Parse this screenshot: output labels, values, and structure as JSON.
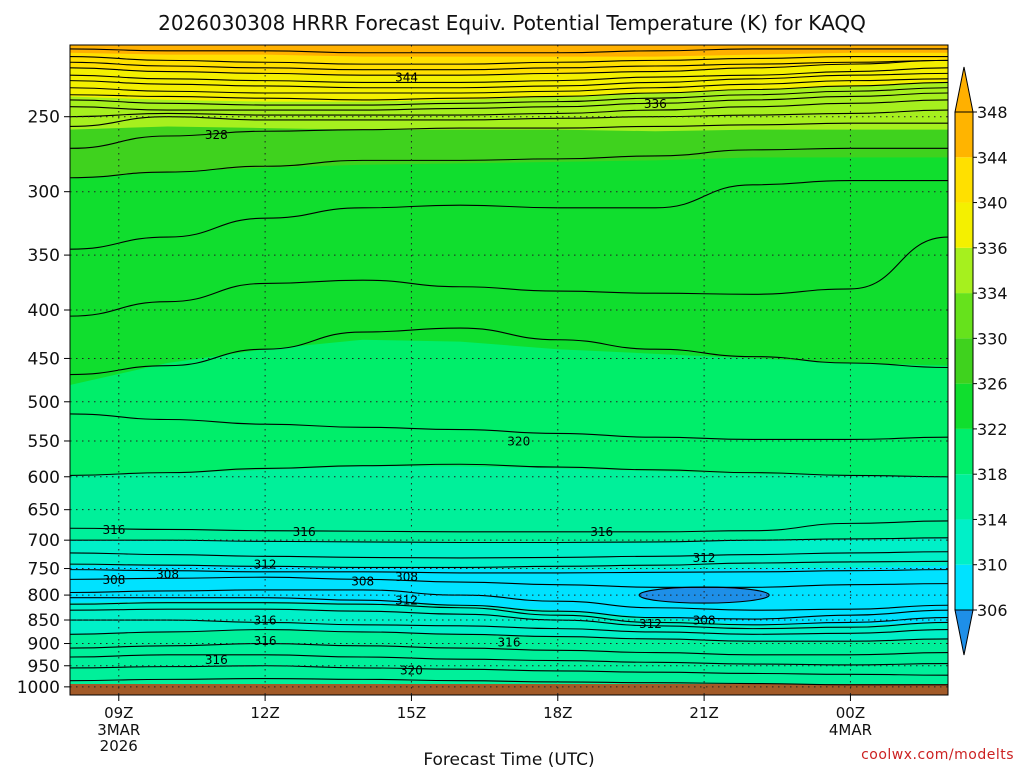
{
  "chart_data": {
    "type": "heatmap",
    "title": "2026030308 HRRR Forecast Equiv. Potential Temperature (K) for KAQQ",
    "xlabel": "Forecast Time (UTC)",
    "ylabel": "",
    "credit": "coolwx.com/modelts",
    "x_ticks": [
      {
        "hour": 0,
        "label": "09Z",
        "sub": [
          "3MAR",
          "2026"
        ]
      },
      {
        "hour": 3,
        "label": "12Z",
        "sub": []
      },
      {
        "hour": 6,
        "label": "15Z",
        "sub": []
      },
      {
        "hour": 9,
        "label": "18Z",
        "sub": []
      },
      {
        "hour": 12,
        "label": "21Z",
        "sub": []
      },
      {
        "hour": 15,
        "label": "00Z",
        "sub": [
          "4MAR"
        ]
      }
    ],
    "xlim": [
      -1,
      17
    ],
    "y_ticks": [
      250,
      300,
      350,
      400,
      450,
      500,
      550,
      600,
      650,
      700,
      750,
      800,
      850,
      900,
      950,
      1000
    ],
    "ylim": [
      1020,
      210
    ],
    "colorbar": {
      "levels": [
        306,
        310,
        314,
        318,
        322,
        326,
        330,
        334,
        336,
        340,
        344,
        348
      ],
      "colors": [
        "#2f9df0",
        "#00e2ff",
        "#00f0c8",
        "#00f09a",
        "#00ee6a",
        "#10de2e",
        "#3fd21e",
        "#66e21c",
        "#a6f01e",
        "#f4f000",
        "#ffe000",
        "#ffb400"
      ],
      "under_color": "#1e8fe8",
      "over_color": "#ffb000"
    },
    "ground_color": "#a25a28",
    "series": [
      {
        "name": "theta-e",
        "values_by_level": {
          "250": 334,
          "300": 328,
          "350": 326,
          "400": 325,
          "450": 324,
          "500": 322,
          "550": 320,
          "600": 319,
          "650": 318,
          "700": 316,
          "750": 312,
          "800": 308,
          "850": 313,
          "900": 316,
          "950": 318,
          "1000": 319
        }
      }
    ],
    "contour_labels": [
      {
        "text": "344",
        "hour": 5.9,
        "p": 227
      },
      {
        "text": "336",
        "hour": 11.0,
        "p": 242
      },
      {
        "text": "328",
        "hour": 2.0,
        "p": 261
      },
      {
        "text": "320",
        "hour": 8.2,
        "p": 550
      },
      {
        "text": "316",
        "hour": -0.1,
        "p": 682
      },
      {
        "text": "316",
        "hour": 3.8,
        "p": 685
      },
      {
        "text": "316",
        "hour": 9.9,
        "p": 685
      },
      {
        "text": "312",
        "hour": 3.0,
        "p": 742
      },
      {
        "text": "312",
        "hour": 12.0,
        "p": 730
      },
      {
        "text": "308",
        "hour": -0.1,
        "p": 770
      },
      {
        "text": "308",
        "hour": 1.0,
        "p": 760
      },
      {
        "text": "308",
        "hour": 5.0,
        "p": 773
      },
      {
        "text": "308",
        "hour": 5.9,
        "p": 765
      },
      {
        "text": "312",
        "hour": 5.9,
        "p": 810
      },
      {
        "text": "316",
        "hour": 3.0,
        "p": 850
      },
      {
        "text": "312",
        "hour": 10.9,
        "p": 857
      },
      {
        "text": "308",
        "hour": 12.0,
        "p": 850
      },
      {
        "text": "316",
        "hour": 3.0,
        "p": 893
      },
      {
        "text": "316",
        "hour": 8.0,
        "p": 897
      },
      {
        "text": "316",
        "hour": 2.0,
        "p": 936
      },
      {
        "text": "320",
        "hour": 6.0,
        "p": 960
      }
    ]
  }
}
